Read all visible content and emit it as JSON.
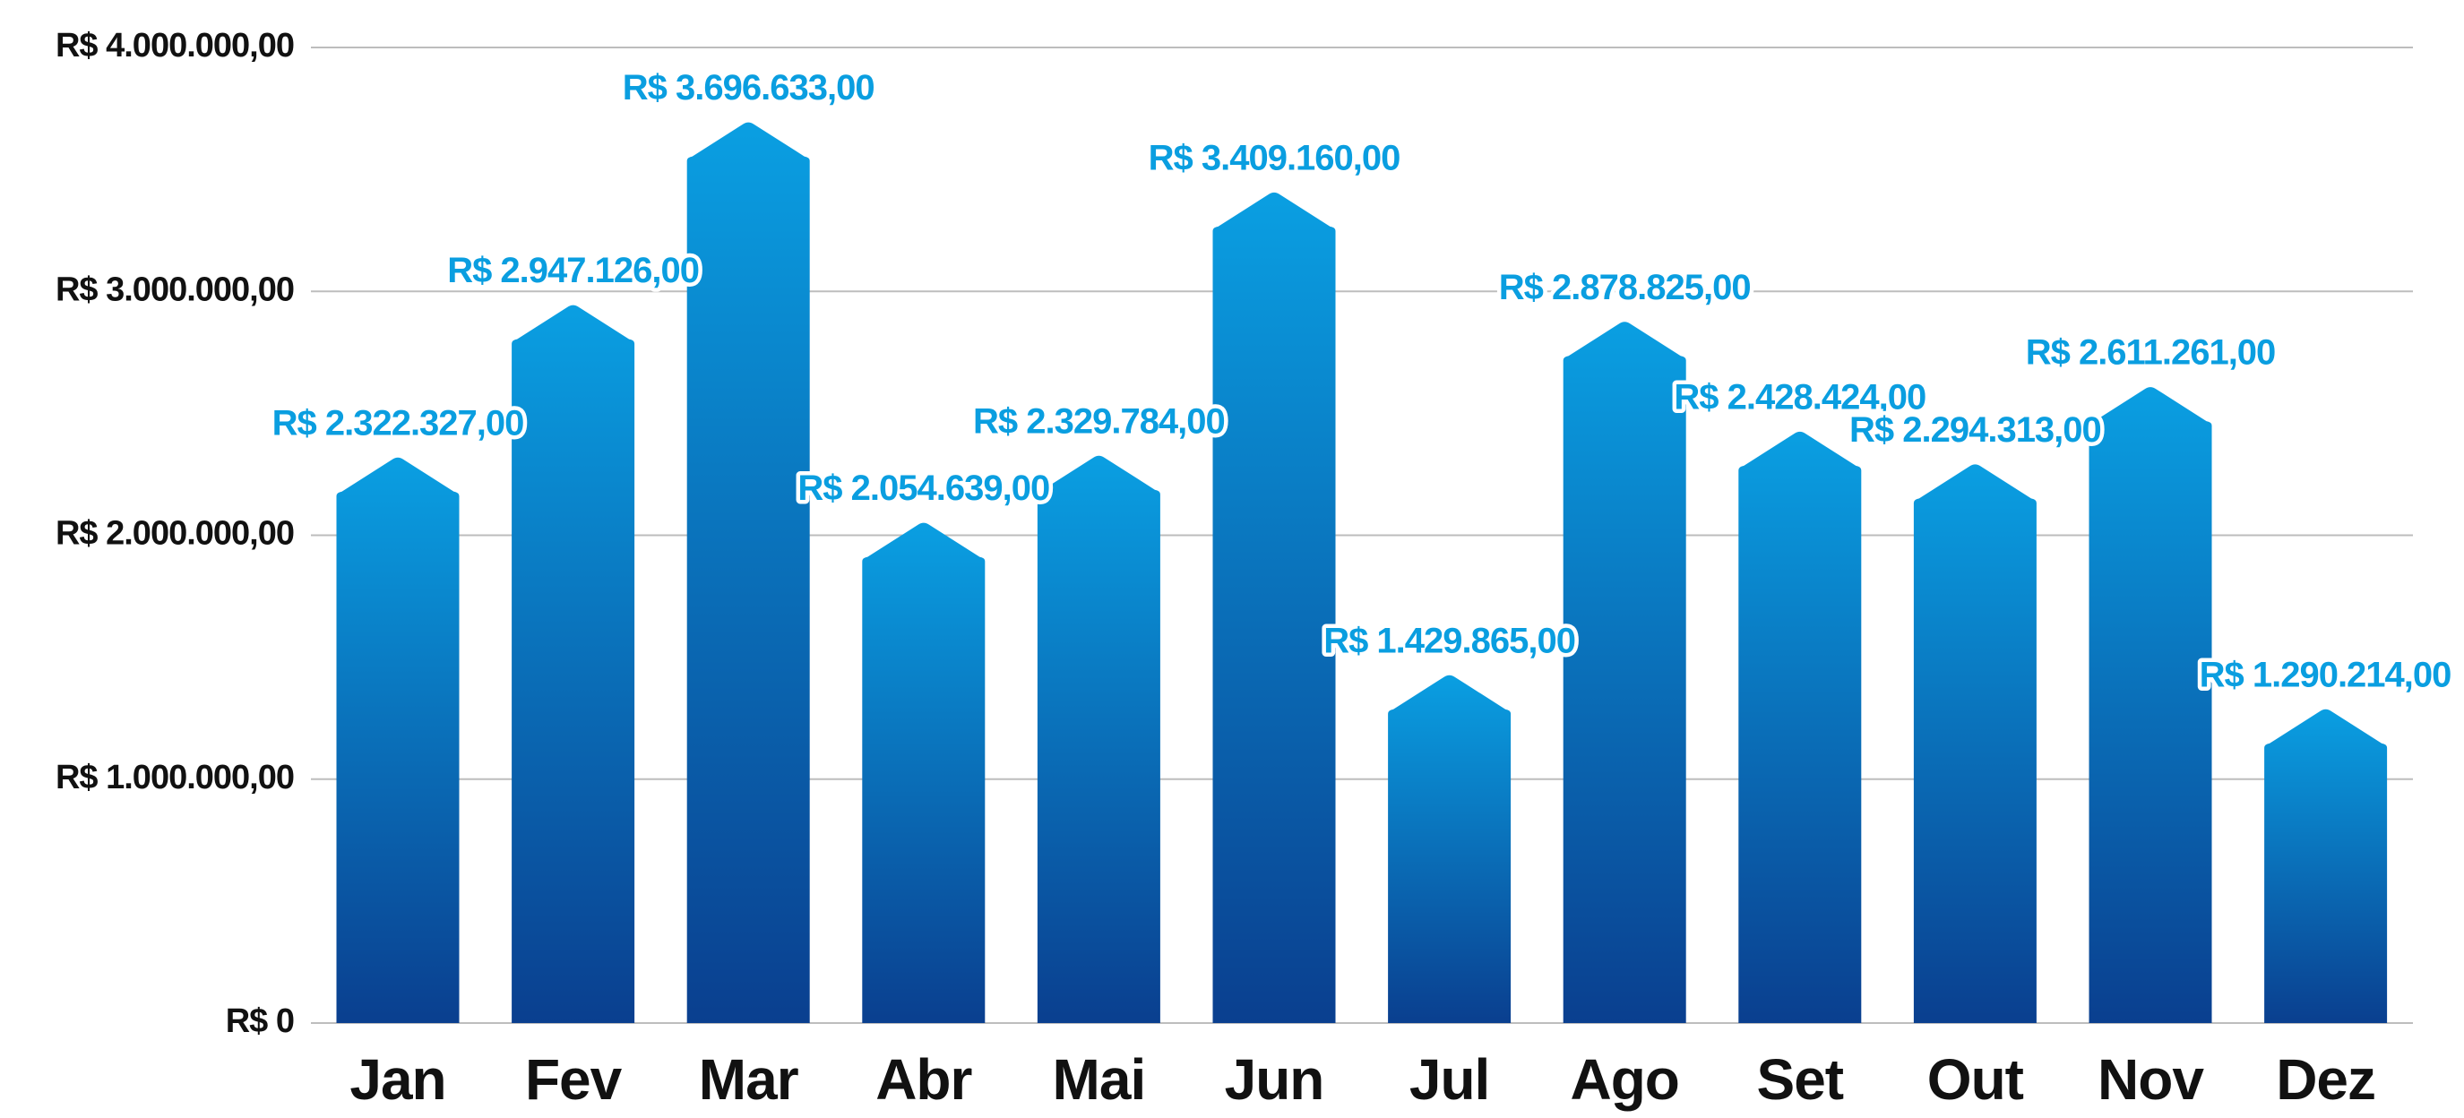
{
  "chart_data": {
    "type": "bar",
    "categories": [
      "Jan",
      "Fev",
      "Mar",
      "Abr",
      "Mai",
      "Jun",
      "Jul",
      "Ago",
      "Set",
      "Out",
      "Nov",
      "Dez"
    ],
    "values": [
      2322327,
      2947126,
      3696633,
      2054639,
      2329784,
      3409160,
      1429865,
      2878825,
      2428424,
      2294313,
      2611261,
      1290214
    ],
    "value_labels": [
      "R$ 2.322.327,00",
      "R$ 2.947.126,00",
      "R$ 3.696.633,00",
      "R$ 2.054.639,00",
      "R$ 2.329.784,00",
      "R$ 3.409.160,00",
      "R$ 1.429.865,00",
      "R$ 2.878.825,00",
      "R$ 2.428.424,00",
      "R$ 2.294.313,00",
      "R$ 2.611.261,00",
      "R$ 1.290.214,00"
    ],
    "color": [
      "#0a9fe2",
      "#0a3f8f"
    ],
    "ylim": [
      0,
      4000000
    ],
    "yticks": [
      {
        "value": 0,
        "label": "R$ 0"
      },
      {
        "value": 1000000,
        "label": "R$ 1.000.000,00"
      },
      {
        "value": 2000000,
        "label": "R$ 2.000.000,00"
      },
      {
        "value": 3000000,
        "label": "R$ 3.000.000,00"
      },
      {
        "value": 4000000,
        "label": "R$ 4.000.000,00"
      }
    ],
    "grid": true
  }
}
